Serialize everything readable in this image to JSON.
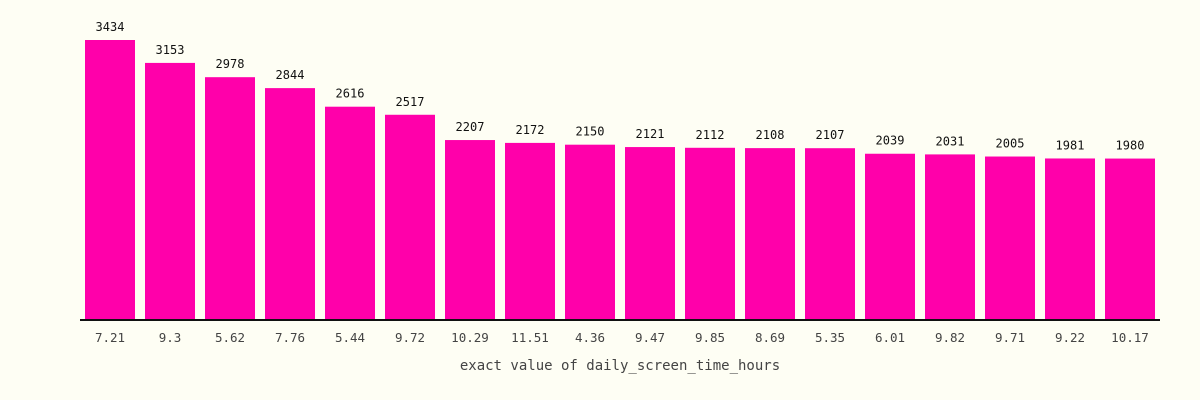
{
  "colors": {
    "background": "#fefef4",
    "bar": "#ff00aa",
    "axis": "#111111"
  },
  "chart_data": {
    "type": "bar",
    "title": "",
    "xlabel": "exact value of daily_screen_time_hours",
    "ylabel": "",
    "categories": [
      "7.21",
      "9.3",
      "5.62",
      "7.76",
      "5.44",
      "9.72",
      "10.29",
      "11.51",
      "4.36",
      "9.47",
      "9.85",
      "8.69",
      "5.35",
      "6.01",
      "9.82",
      "9.71",
      "9.22",
      "10.17"
    ],
    "values": [
      3434,
      3153,
      2978,
      2844,
      2616,
      2517,
      2207,
      2172,
      2150,
      2121,
      2112,
      2108,
      2107,
      2039,
      2031,
      2005,
      1981,
      1980
    ],
    "ylim": [
      0,
      3434
    ],
    "grid": false,
    "legend": "none",
    "data_labels": true
  }
}
